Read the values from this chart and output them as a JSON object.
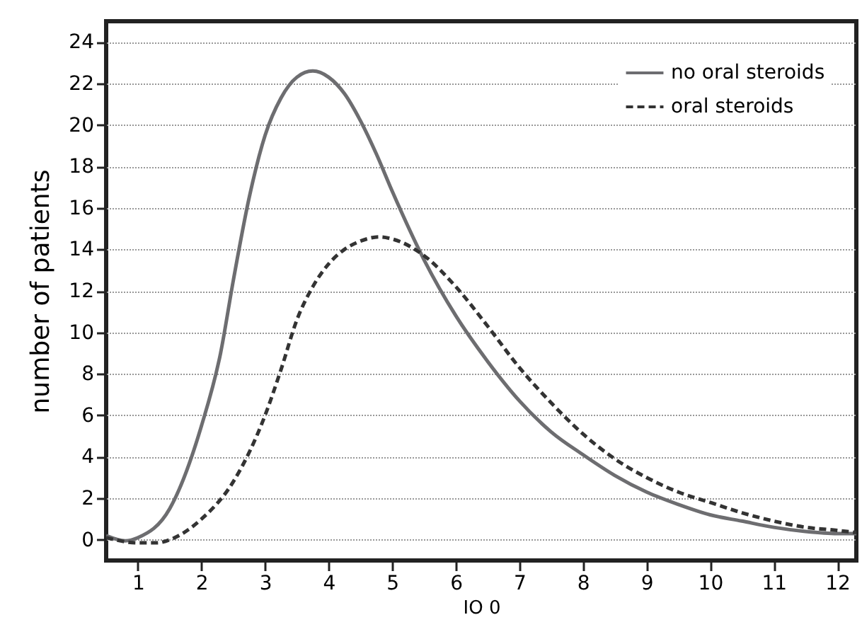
{
  "chart_data": {
    "type": "line",
    "xlabel": "IO 0",
    "ylabel": "number of patients",
    "xlim": [
      0.5,
      12.3
    ],
    "xticks": [
      1,
      2,
      3,
      4,
      5,
      6,
      7,
      8,
      9,
      10,
      11,
      12
    ],
    "ylim": [
      -1,
      25
    ],
    "yticks": [
      0,
      2,
      4,
      6,
      8,
      10,
      12,
      14,
      16,
      18,
      20,
      22,
      24
    ],
    "grid": "y",
    "legend": "top right",
    "marker": "none",
    "series": [
      {
        "name": "no oral steroids",
        "color": "#6d6d70",
        "line_style": "solid",
        "x": [
          0.5,
          0.8,
          1,
          1.5,
          2,
          2.3,
          2.5,
          2.75,
          3,
          3.25,
          3.5,
          3.75,
          4,
          4.25,
          4.5,
          4.75,
          5,
          5.5,
          6,
          6.5,
          7,
          7.5,
          8,
          8.5,
          9,
          9.5,
          10,
          10.5,
          11,
          11.5,
          12,
          12.3
        ],
        "values": [
          0.2,
          -0.05,
          0.1,
          1.5,
          5.5,
          9,
          12.5,
          16.5,
          19.5,
          21.3,
          22.3,
          22.6,
          22.3,
          21.5,
          20.2,
          18.6,
          16.8,
          13.5,
          10.8,
          8.6,
          6.7,
          5.2,
          4.1,
          3.1,
          2.3,
          1.7,
          1.2,
          0.9,
          0.6,
          0.4,
          0.3,
          0.3
        ]
      },
      {
        "name": "oral steroids",
        "color": "#333333",
        "line_style": "dashed",
        "x": [
          0.5,
          1,
          1.3,
          1.5,
          2,
          2.5,
          3,
          3.25,
          3.5,
          3.75,
          4,
          4.25,
          4.5,
          4.8,
          5,
          5.5,
          6,
          6.5,
          7,
          7.5,
          8,
          8.5,
          9,
          9.5,
          10,
          10.5,
          11,
          11.5,
          12,
          12.3
        ],
        "values": [
          0.1,
          -0.15,
          -0.15,
          0,
          1,
          2.8,
          6,
          8.2,
          10.6,
          12.2,
          13.3,
          14,
          14.4,
          14.6,
          14.5,
          13.7,
          12.2,
          10.3,
          8.3,
          6.6,
          5.1,
          3.9,
          3,
          2.3,
          1.8,
          1.3,
          0.9,
          0.6,
          0.45,
          0.35
        ]
      }
    ]
  }
}
